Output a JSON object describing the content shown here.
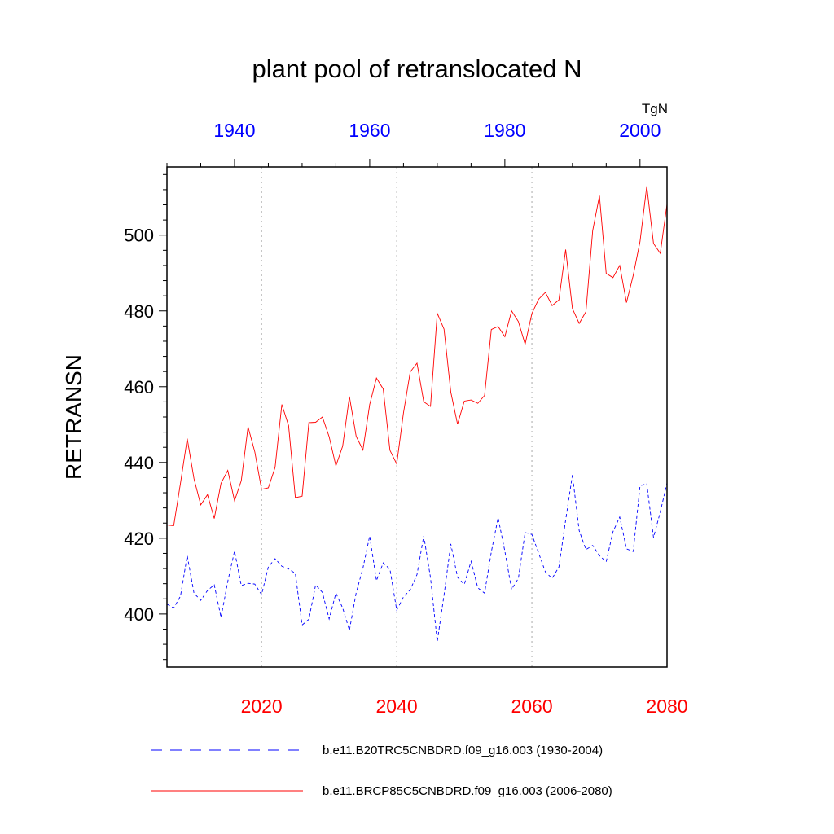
{
  "chart_data": {
    "type": "line",
    "title": "plant pool of retranslocated N",
    "units": "TgN",
    "ylabel": "RETRANSN",
    "ylim": [
      386,
      518
    ],
    "yticks": [
      400,
      420,
      440,
      460,
      480,
      500
    ],
    "grid": "vertical dotted lines at bottom major ticks",
    "bottom_axis": {
      "range": [
        2006,
        2080
      ],
      "ticks": [
        2020,
        2040,
        2060,
        2080
      ],
      "color": "#ff0000"
    },
    "top_axis": {
      "range": [
        1930,
        2004
      ],
      "ticks": [
        1940,
        1960,
        1980,
        2000
      ],
      "color": "#0000ff"
    },
    "series": [
      {
        "name": "b.e11.B20TRC5CNBDRD.f09_g16.003 (1930-2004)",
        "color": "#0000ff",
        "style": "dashed",
        "axis": "top",
        "x": [
          1930,
          1931,
          1932,
          1933,
          1934,
          1935,
          1936,
          1937,
          1938,
          1939,
          1940,
          1941,
          1942,
          1943,
          1944,
          1945,
          1946,
          1947,
          1948,
          1949,
          1950,
          1951,
          1952,
          1953,
          1954,
          1955,
          1956,
          1957,
          1958,
          1959,
          1960,
          1961,
          1962,
          1963,
          1964,
          1965,
          1966,
          1967,
          1968,
          1969,
          1970,
          1971,
          1972,
          1973,
          1974,
          1975,
          1976,
          1977,
          1978,
          1979,
          1980,
          1981,
          1982,
          1983,
          1984,
          1985,
          1986,
          1987,
          1988,
          1989,
          1990,
          1991,
          1992,
          1993,
          1994,
          1995,
          1996,
          1997,
          1998,
          1999,
          2000,
          2001,
          2002,
          2003,
          2004
        ],
        "values": [
          402.6,
          401.6,
          404.7,
          415.4,
          405.5,
          403.6,
          406.2,
          407.7,
          399.1,
          408.6,
          416.6,
          407.5,
          408.1,
          407.9,
          405.1,
          412.4,
          414.6,
          412.6,
          411.9,
          410.7,
          397.1,
          398.6,
          407.7,
          405.7,
          398.7,
          405.5,
          401.6,
          395.7,
          405.6,
          412.1,
          420.6,
          408.8,
          413.5,
          411.8,
          401.0,
          404.5,
          406.4,
          410.4,
          420.6,
          409.6,
          392.7,
          405.0,
          418.5,
          409.7,
          407.8,
          413.9,
          406.9,
          405.5,
          416.4,
          425.4,
          416.6,
          406.5,
          409.4,
          421.5,
          421.0,
          416.1,
          411.1,
          409.4,
          412.4,
          424.8,
          436.7,
          422.0,
          417.0,
          418.1,
          415.4,
          413.8,
          421.7,
          425.6,
          417.2,
          416.5,
          433.8,
          434.4,
          420.2,
          426.9,
          434.6
        ]
      },
      {
        "name": "b.e11.BRCP85C5CNBDRD.f09_g16.003 (2006-2080)",
        "color": "#ff0000",
        "style": "solid",
        "axis": "bottom",
        "x": [
          2006,
          2007,
          2008,
          2009,
          2010,
          2011,
          2012,
          2013,
          2014,
          2015,
          2016,
          2017,
          2018,
          2019,
          2020,
          2021,
          2022,
          2023,
          2024,
          2025,
          2026,
          2027,
          2028,
          2029,
          2030,
          2031,
          2032,
          2033,
          2034,
          2035,
          2036,
          2037,
          2038,
          2039,
          2040,
          2041,
          2042,
          2043,
          2044,
          2045,
          2046,
          2047,
          2048,
          2049,
          2050,
          2051,
          2052,
          2053,
          2054,
          2055,
          2056,
          2057,
          2058,
          2059,
          2060,
          2061,
          2062,
          2063,
          2064,
          2065,
          2066,
          2067,
          2068,
          2069,
          2070,
          2071,
          2072,
          2073,
          2074,
          2075,
          2076,
          2077,
          2078,
          2079,
          2080
        ],
        "values": [
          423.5,
          423.3,
          434.5,
          446.3,
          435.7,
          428.8,
          431.5,
          425.2,
          434.5,
          437.9,
          429.9,
          435.2,
          449.4,
          442.8,
          432.9,
          433.3,
          438.7,
          455.3,
          449.7,
          430.7,
          431.1,
          450.5,
          450.6,
          452.0,
          446.8,
          439.1,
          444.3,
          457.4,
          446.9,
          443.3,
          455.3,
          462.3,
          459.4,
          443.2,
          439.6,
          453.1,
          463.9,
          466.2,
          456.0,
          454.8,
          479.4,
          475.2,
          458.6,
          450.1,
          456.2,
          456.5,
          455.6,
          457.7,
          475.1,
          475.9,
          473.2,
          480.0,
          477.2,
          471.2,
          479.3,
          483.1,
          484.9,
          481.4,
          482.9,
          496.2,
          480.6,
          476.7,
          479.8,
          501.2,
          510.4,
          489.9,
          488.8,
          492.0,
          482.2,
          489.4,
          498.3,
          512.9,
          497.8,
          495.2,
          508.2
        ]
      }
    ],
    "legend_position": "below"
  }
}
